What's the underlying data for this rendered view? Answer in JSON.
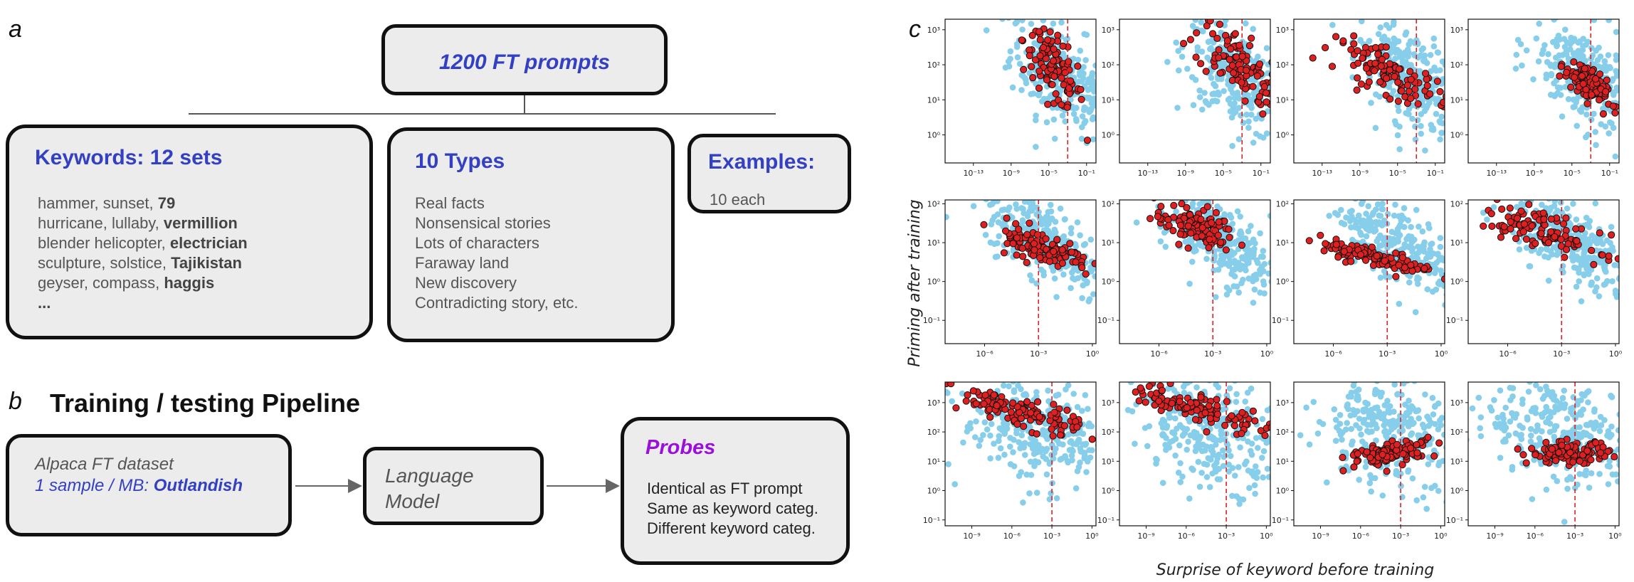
{
  "panels": {
    "a": "a",
    "b": "b",
    "c": "c"
  },
  "panel_a": {
    "top_box": "1200 FT prompts",
    "keywords": {
      "title": "Keywords: 12 sets",
      "lines": [
        {
          "plain": "hammer, sunset, ",
          "bold": "79"
        },
        {
          "plain": "hurricane, lullaby, ",
          "bold": "vermillion"
        },
        {
          "plain": "blender helicopter, ",
          "bold": "electrician"
        },
        {
          "plain": "sculpture, solstice, ",
          "bold": "Tajikistan"
        },
        {
          "plain": "geyser, compass, ",
          "bold": "haggis"
        },
        {
          "plain": "",
          "bold": "..."
        }
      ]
    },
    "types": {
      "title": "10 Types",
      "lines": [
        "Real facts",
        "Nonsensical stories",
        "Lots of characters",
        "Faraway land",
        "New discovery",
        "Contradicting story, etc."
      ]
    },
    "examples": {
      "title": "Examples:",
      "text": "10 each"
    }
  },
  "panel_b": {
    "title": "Training / testing Pipeline",
    "dataset": {
      "line1": "Alpaca FT dataset",
      "line2_plain": "1 sample / MB: ",
      "line2_bold": "Outlandish"
    },
    "model": {
      "line1": "Language",
      "line2": "Model"
    },
    "probes": {
      "title": "Probes",
      "lines": [
        "Identical as FT prompt",
        "Same as keyword categ.",
        "Different keyword categ."
      ]
    }
  },
  "colors": {
    "blue_title": "#3340c2",
    "probes": "#9b10d8",
    "background_dots": "#87ceeb",
    "foreground_dots": "#e02020",
    "threshold": "#e02020"
  },
  "chart_data": {
    "type": "scatter",
    "layout": "3x4 grid",
    "xlabel": "Surprise of keyword before training",
    "ylabel": "Priming after training",
    "xscale": "log",
    "yscale": "log",
    "rows": [
      {
        "xlim_exp": [
          -16,
          0
        ],
        "ylim_exp": [
          -0.8,
          3.3
        ],
        "xticks": [
          "10⁻¹³",
          "10⁻⁹",
          "10⁻⁵",
          "10⁻¹"
        ],
        "xtick_exp": [
          -13,
          -9,
          -5,
          -1
        ],
        "yticks": [
          "10⁰",
          "10¹",
          "10²",
          "10³"
        ],
        "ytick_exp": [
          0,
          1,
          2,
          3
        ],
        "threshold_exp": -3,
        "bg": {
          "xc": -3.5,
          "yc": 1.6,
          "sx": 2.8,
          "sy": 0.7,
          "tilt": -0.15,
          "n": 280
        },
        "subplots": [
          {
            "fg": {
              "xc": -4.5,
              "yc": 1.9,
              "sx": 1.6,
              "sy": 0.45,
              "tilt": -0.25,
              "n": 110
            }
          },
          {
            "fg": {
              "xc": -3.5,
              "yc": 2.0,
              "sx": 2.3,
              "sy": 0.45,
              "tilt": -0.2,
              "n": 110
            }
          },
          {
            "fg": {
              "xc": -5.5,
              "yc": 1.7,
              "sx": 3.0,
              "sy": 0.3,
              "tilt": -0.12,
              "n": 110
            }
          },
          {
            "fg": {
              "xc": -3.5,
              "yc": 1.5,
              "sx": 1.1,
              "sy": 0.25,
              "tilt": -0.2,
              "n": 110
            }
          }
        ]
      },
      {
        "xlim_exp": [
          -8.2,
          0.2
        ],
        "ylim_exp": [
          -1.6,
          2.1
        ],
        "xticks": [
          "10⁻⁶",
          "10⁻³",
          "10⁰"
        ],
        "xtick_exp": [
          -6,
          -3,
          0
        ],
        "yticks": [
          "10⁻¹",
          "10⁰",
          "10¹",
          "10²"
        ],
        "ytick_exp": [
          -1,
          0,
          1,
          2
        ],
        "threshold_exp": -3,
        "bg": {
          "xc": -2.5,
          "yc": 1.0,
          "sx": 1.7,
          "sy": 0.5,
          "tilt": -0.25,
          "n": 280
        },
        "subplots": [
          {
            "fg": {
              "xc": -2.8,
              "yc": 0.9,
              "sx": 1.4,
              "sy": 0.2,
              "tilt": -0.15,
              "n": 110
            }
          },
          {
            "fg": {
              "xc": -4.0,
              "yc": 1.4,
              "sx": 1.1,
              "sy": 0.25,
              "tilt": -0.1,
              "n": 110
            }
          },
          {
            "fg": {
              "xc": -3.5,
              "yc": 0.6,
              "sx": 1.6,
              "sy": 0.12,
              "tilt": -0.1,
              "n": 110
            }
          },
          {
            "fg": {
              "xc": -4.0,
              "yc": 1.3,
              "sx": 1.6,
              "sy": 0.22,
              "tilt": -0.15,
              "n": 110
            }
          }
        ]
      },
      {
        "xlim_exp": [
          -11,
          0.3
        ],
        "ylim_exp": [
          -1.2,
          3.7
        ],
        "xticks": [
          "10⁻⁹",
          "10⁻⁶",
          "10⁻³",
          "10⁰"
        ],
        "xtick_exp": [
          -9,
          -6,
          -3,
          0
        ],
        "yticks": [
          "10⁻¹",
          "10⁰",
          "10¹",
          "10²",
          "10³"
        ],
        "ytick_exp": [
          -1,
          0,
          1,
          2,
          3
        ],
        "threshold_exp": -3,
        "bg": {
          "xc": -4.0,
          "yc": 2.0,
          "sx": 2.8,
          "sy": 0.9,
          "tilt": -0.1,
          "n": 300
        },
        "subplots": [
          {
            "fg": {
              "xc": -5.5,
              "yc": 2.7,
              "sx": 2.4,
              "sy": 0.25,
              "tilt": -0.12,
              "n": 110
            }
          },
          {
            "fg": {
              "xc": -5.0,
              "yc": 2.8,
              "sx": 2.6,
              "sy": 0.25,
              "tilt": -0.12,
              "n": 110
            }
          },
          {
            "fg": {
              "xc": -3.5,
              "yc": 1.3,
              "sx": 1.6,
              "sy": 0.18,
              "tilt": 0.08,
              "n": 110
            }
          },
          {
            "fg": {
              "xc": -3.5,
              "yc": 1.3,
              "sx": 1.5,
              "sy": 0.18,
              "tilt": 0.0,
              "n": 110
            }
          }
        ]
      }
    ]
  }
}
